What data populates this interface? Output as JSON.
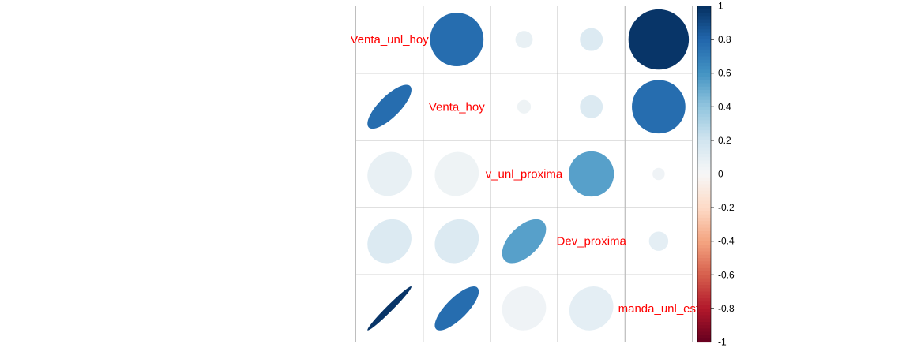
{
  "chart_data": {
    "type": "heatmap",
    "style": "mixed: circles (upper triangle), ellipses (lower triangle), variable names on diagonal",
    "variables": [
      "Venta_unl_hoy",
      "Venta_hoy",
      "Dev_unl_proxima",
      "Dev_proxima",
      "Demanda_unl_estim"
    ],
    "diagonal_labels": [
      "Venta_unl_hoy",
      "Venta_hoy",
      "v_unl_proxima",
      "Dev_proxima",
      "manda_unl_est"
    ],
    "correlation_matrix": [
      [
        1.0,
        0.77,
        0.08,
        0.14,
        0.98
      ],
      [
        0.77,
        1.0,
        0.05,
        0.14,
        0.77
      ],
      [
        0.08,
        0.05,
        1.0,
        0.55,
        0.04
      ],
      [
        0.14,
        0.14,
        0.55,
        1.0,
        0.1
      ],
      [
        0.98,
        0.77,
        0.04,
        0.1,
        1.0
      ]
    ],
    "colorbar": {
      "range": [
        -1,
        1
      ],
      "tick_labels": [
        "1",
        "0.8",
        "0.6",
        "0.4",
        "0.2",
        "0",
        "-0.2",
        "-0.4",
        "-0.6",
        "-0.8",
        "-1"
      ],
      "negative_color": "#67001F",
      "neutral_color": "#F7F7F7",
      "positive_color": "#053061"
    },
    "grid": true,
    "label_color": "#FF0000",
    "grid_color": "#BEBEBE"
  }
}
